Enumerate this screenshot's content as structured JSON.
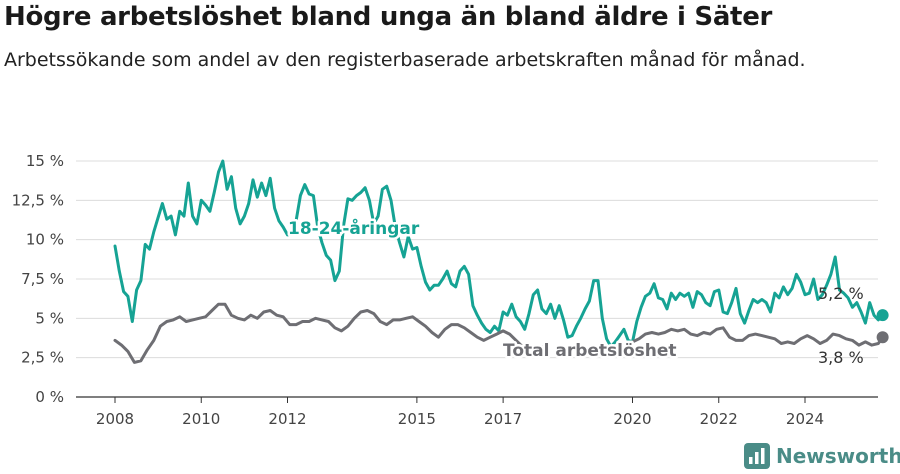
{
  "title": "Högre arbetslöshet bland unga än bland äldre i Säter",
  "subtitle": "Arbetssökande som andel av den registerbaserade arbetskraften månad för månad.",
  "brand": "Newsworthy",
  "colors": {
    "youth": "#16a394",
    "total": "#6e6e73"
  },
  "chart_data": {
    "type": "line",
    "x_unit": "year (decimal, monthly)",
    "y_unit": "%",
    "ylim": [
      0,
      15
    ],
    "xlim": [
      2007.8,
      2025.5
    ],
    "y_ticks": [
      0,
      2.5,
      5,
      7.5,
      10,
      12.5,
      15
    ],
    "y_tick_labels": [
      "0 %",
      "2,5 %",
      "5 %",
      "7,5 %",
      "10 %",
      "12,5 %",
      "15 %"
    ],
    "x_ticks": [
      2008,
      2010,
      2012,
      2015,
      2017,
      2020,
      2022,
      2024
    ],
    "x_tick_labels": [
      "2008",
      "2010",
      "2012",
      "2015",
      "2017",
      "2020",
      "2022",
      "2024"
    ],
    "grid": true,
    "series": [
      {
        "name": "18-24-åringar",
        "end_label": "5,2 %",
        "points": [
          [
            2008.0,
            9.6
          ],
          [
            2008.1,
            8.0
          ],
          [
            2008.2,
            6.7
          ],
          [
            2008.3,
            6.4
          ],
          [
            2008.4,
            4.8
          ],
          [
            2008.5,
            6.8
          ],
          [
            2008.6,
            7.4
          ],
          [
            2008.7,
            9.7
          ],
          [
            2008.8,
            9.4
          ],
          [
            2008.9,
            10.5
          ],
          [
            2009.0,
            11.4
          ],
          [
            2009.1,
            12.3
          ],
          [
            2009.2,
            11.3
          ],
          [
            2009.3,
            11.5
          ],
          [
            2009.4,
            10.3
          ],
          [
            2009.5,
            11.8
          ],
          [
            2009.6,
            11.5
          ],
          [
            2009.7,
            13.6
          ],
          [
            2009.8,
            11.5
          ],
          [
            2009.9,
            11.0
          ],
          [
            2010.0,
            12.5
          ],
          [
            2010.1,
            12.2
          ],
          [
            2010.2,
            11.8
          ],
          [
            2010.3,
            13.0
          ],
          [
            2010.4,
            14.3
          ],
          [
            2010.5,
            15.0
          ],
          [
            2010.6,
            13.2
          ],
          [
            2010.7,
            14.0
          ],
          [
            2010.8,
            12.0
          ],
          [
            2010.9,
            11.0
          ],
          [
            2011.0,
            11.5
          ],
          [
            2011.1,
            12.3
          ],
          [
            2011.2,
            13.8
          ],
          [
            2011.3,
            12.7
          ],
          [
            2011.4,
            13.6
          ],
          [
            2011.5,
            12.8
          ],
          [
            2011.6,
            13.9
          ],
          [
            2011.7,
            12.0
          ],
          [
            2011.8,
            11.2
          ],
          [
            2011.9,
            10.8
          ],
          [
            2012.0,
            10.3
          ],
          [
            2012.1,
            10.4
          ],
          [
            2012.2,
            11.2
          ],
          [
            2012.3,
            12.8
          ],
          [
            2012.4,
            13.5
          ],
          [
            2012.5,
            12.9
          ],
          [
            2012.6,
            12.8
          ],
          [
            2012.7,
            10.8
          ],
          [
            2012.8,
            9.8
          ],
          [
            2012.9,
            9.0
          ],
          [
            2013.0,
            8.7
          ],
          [
            2013.1,
            7.4
          ],
          [
            2013.2,
            8.0
          ],
          [
            2013.3,
            10.9
          ],
          [
            2013.4,
            12.6
          ],
          [
            2013.5,
            12.5
          ],
          [
            2013.6,
            12.8
          ],
          [
            2013.7,
            13.0
          ],
          [
            2013.8,
            13.3
          ],
          [
            2013.9,
            12.5
          ],
          [
            2014.0,
            11.0
          ],
          [
            2014.1,
            11.5
          ],
          [
            2014.2,
            13.2
          ],
          [
            2014.3,
            13.4
          ],
          [
            2014.4,
            12.5
          ],
          [
            2014.5,
            10.8
          ],
          [
            2014.6,
            9.8
          ],
          [
            2014.7,
            8.9
          ],
          [
            2014.8,
            10.2
          ],
          [
            2014.9,
            9.4
          ],
          [
            2015.0,
            9.5
          ],
          [
            2015.1,
            8.3
          ],
          [
            2015.2,
            7.3
          ],
          [
            2015.3,
            6.8
          ],
          [
            2015.4,
            7.1
          ],
          [
            2015.5,
            7.1
          ],
          [
            2015.6,
            7.5
          ],
          [
            2015.7,
            8.0
          ],
          [
            2015.8,
            7.2
          ],
          [
            2015.9,
            7.0
          ],
          [
            2016.0,
            8.0
          ],
          [
            2016.1,
            8.3
          ],
          [
            2016.2,
            7.8
          ],
          [
            2016.3,
            5.8
          ],
          [
            2016.4,
            5.2
          ],
          [
            2016.5,
            4.7
          ],
          [
            2016.6,
            4.3
          ],
          [
            2016.7,
            4.1
          ],
          [
            2016.8,
            4.5
          ],
          [
            2016.9,
            4.2
          ],
          [
            2017.0,
            5.4
          ],
          [
            2017.1,
            5.2
          ],
          [
            2017.2,
            5.9
          ],
          [
            2017.3,
            5.1
          ],
          [
            2017.4,
            4.8
          ],
          [
            2017.5,
            4.3
          ],
          [
            2017.6,
            5.3
          ],
          [
            2017.7,
            6.5
          ],
          [
            2017.8,
            6.8
          ],
          [
            2017.9,
            5.6
          ],
          [
            2018.0,
            5.3
          ],
          [
            2018.1,
            5.9
          ],
          [
            2018.2,
            5.0
          ],
          [
            2018.3,
            5.8
          ],
          [
            2018.4,
            4.9
          ],
          [
            2018.5,
            3.8
          ],
          [
            2018.6,
            3.9
          ],
          [
            2018.7,
            4.5
          ],
          [
            2018.8,
            5.0
          ],
          [
            2018.9,
            5.6
          ],
          [
            2019.0,
            6.1
          ],
          [
            2019.1,
            7.4
          ],
          [
            2019.2,
            7.4
          ],
          [
            2019.3,
            5.0
          ],
          [
            2019.4,
            3.7
          ],
          [
            2019.5,
            3.2
          ],
          [
            2019.6,
            3.5
          ],
          [
            2019.7,
            3.9
          ],
          [
            2019.8,
            4.3
          ],
          [
            2019.9,
            3.6
          ],
          [
            2020.0,
            3.5
          ],
          [
            2020.1,
            4.8
          ],
          [
            2020.2,
            5.7
          ],
          [
            2020.3,
            6.4
          ],
          [
            2020.4,
            6.6
          ],
          [
            2020.5,
            7.2
          ],
          [
            2020.6,
            6.3
          ],
          [
            2020.7,
            6.2
          ],
          [
            2020.8,
            5.6
          ],
          [
            2020.9,
            6.6
          ],
          [
            2021.0,
            6.2
          ],
          [
            2021.1,
            6.6
          ],
          [
            2021.2,
            6.4
          ],
          [
            2021.3,
            6.6
          ],
          [
            2021.4,
            5.7
          ],
          [
            2021.5,
            6.7
          ],
          [
            2021.6,
            6.5
          ],
          [
            2021.7,
            6.0
          ],
          [
            2021.8,
            5.8
          ],
          [
            2021.9,
            6.7
          ],
          [
            2022.0,
            6.8
          ],
          [
            2022.1,
            5.4
          ],
          [
            2022.2,
            5.3
          ],
          [
            2022.3,
            6.0
          ],
          [
            2022.4,
            6.9
          ],
          [
            2022.5,
            5.3
          ],
          [
            2022.6,
            4.7
          ],
          [
            2022.7,
            5.5
          ],
          [
            2022.8,
            6.2
          ],
          [
            2022.9,
            6.0
          ],
          [
            2023.0,
            6.2
          ],
          [
            2023.1,
            6.0
          ],
          [
            2023.2,
            5.4
          ],
          [
            2023.3,
            6.6
          ],
          [
            2023.4,
            6.3
          ],
          [
            2023.5,
            7.0
          ],
          [
            2023.6,
            6.5
          ],
          [
            2023.7,
            6.9
          ],
          [
            2023.8,
            7.8
          ],
          [
            2023.9,
            7.3
          ],
          [
            2024.0,
            6.5
          ],
          [
            2024.1,
            6.6
          ],
          [
            2024.2,
            7.5
          ],
          [
            2024.3,
            6.2
          ],
          [
            2024.4,
            6.5
          ],
          [
            2024.5,
            7.1
          ],
          [
            2024.6,
            7.8
          ],
          [
            2024.7,
            8.9
          ],
          [
            2024.8,
            6.8
          ],
          [
            2024.9,
            6.6
          ],
          [
            2025.0,
            6.3
          ],
          [
            2025.1,
            5.7
          ],
          [
            2025.2,
            6.0
          ],
          [
            2025.3,
            5.4
          ],
          [
            2025.4,
            4.7
          ],
          [
            2025.5,
            6.0
          ],
          [
            2025.6,
            5.2
          ],
          [
            2025.7,
            4.9
          ],
          [
            2025.8,
            5.2
          ]
        ]
      },
      {
        "name": "Total arbetslöshet",
        "end_label": "3,8 %",
        "points": [
          [
            2008.0,
            3.6
          ],
          [
            2008.15,
            3.3
          ],
          [
            2008.3,
            2.9
          ],
          [
            2008.45,
            2.2
          ],
          [
            2008.6,
            2.3
          ],
          [
            2008.75,
            3.0
          ],
          [
            2008.9,
            3.6
          ],
          [
            2009.05,
            4.5
          ],
          [
            2009.2,
            4.8
          ],
          [
            2009.35,
            4.9
          ],
          [
            2009.5,
            5.1
          ],
          [
            2009.65,
            4.8
          ],
          [
            2009.8,
            4.9
          ],
          [
            2009.95,
            5.0
          ],
          [
            2010.1,
            5.1
          ],
          [
            2010.25,
            5.5
          ],
          [
            2010.4,
            5.9
          ],
          [
            2010.55,
            5.9
          ],
          [
            2010.7,
            5.2
          ],
          [
            2010.85,
            5.0
          ],
          [
            2011.0,
            4.9
          ],
          [
            2011.15,
            5.2
          ],
          [
            2011.3,
            5.0
          ],
          [
            2011.45,
            5.4
          ],
          [
            2011.6,
            5.5
          ],
          [
            2011.75,
            5.2
          ],
          [
            2011.9,
            5.1
          ],
          [
            2012.05,
            4.6
          ],
          [
            2012.2,
            4.6
          ],
          [
            2012.35,
            4.8
          ],
          [
            2012.5,
            4.8
          ],
          [
            2012.65,
            5.0
          ],
          [
            2012.8,
            4.9
          ],
          [
            2012.95,
            4.8
          ],
          [
            2013.1,
            4.4
          ],
          [
            2013.25,
            4.2
          ],
          [
            2013.4,
            4.5
          ],
          [
            2013.55,
            5.0
          ],
          [
            2013.7,
            5.4
          ],
          [
            2013.85,
            5.5
          ],
          [
            2014.0,
            5.3
          ],
          [
            2014.15,
            4.8
          ],
          [
            2014.3,
            4.6
          ],
          [
            2014.45,
            4.9
          ],
          [
            2014.6,
            4.9
          ],
          [
            2014.75,
            5.0
          ],
          [
            2014.9,
            5.1
          ],
          [
            2015.05,
            4.8
          ],
          [
            2015.2,
            4.5
          ],
          [
            2015.35,
            4.1
          ],
          [
            2015.5,
            3.8
          ],
          [
            2015.65,
            4.3
          ],
          [
            2015.8,
            4.6
          ],
          [
            2015.95,
            4.6
          ],
          [
            2016.1,
            4.4
          ],
          [
            2016.25,
            4.1
          ],
          [
            2016.4,
            3.8
          ],
          [
            2016.55,
            3.6
          ],
          [
            2016.7,
            3.8
          ],
          [
            2016.85,
            4.0
          ],
          [
            2017.0,
            4.2
          ],
          [
            2017.15,
            4.0
          ],
          [
            2017.3,
            3.6
          ],
          [
            2017.45,
            3.2
          ],
          [
            2017.6,
            3.1
          ],
          [
            2017.75,
            3.1
          ],
          [
            2017.9,
            3.2
          ]
        ]
      },
      {
        "name": "",
        "points": [
          [
            2018.7,
            3.0
          ],
          [
            2018.85,
            2.6
          ],
          [
            2019.0,
            2.8
          ]
        ]
      },
      {
        "name": "",
        "points": [
          [
            2020.0,
            3.5
          ],
          [
            2020.15,
            3.7
          ],
          [
            2020.3,
            4.0
          ],
          [
            2020.45,
            4.1
          ],
          [
            2020.6,
            4.0
          ],
          [
            2020.75,
            4.1
          ],
          [
            2020.9,
            4.3
          ],
          [
            2021.05,
            4.2
          ],
          [
            2021.2,
            4.3
          ],
          [
            2021.35,
            4.0
          ],
          [
            2021.5,
            3.9
          ],
          [
            2021.65,
            4.1
          ],
          [
            2021.8,
            4.0
          ],
          [
            2021.95,
            4.3
          ],
          [
            2022.1,
            4.4
          ],
          [
            2022.25,
            3.8
          ],
          [
            2022.4,
            3.6
          ],
          [
            2022.55,
            3.6
          ],
          [
            2022.7,
            3.9
          ],
          [
            2022.85,
            4.0
          ],
          [
            2023.0,
            3.9
          ],
          [
            2023.15,
            3.8
          ],
          [
            2023.3,
            3.7
          ],
          [
            2023.45,
            3.4
          ],
          [
            2023.6,
            3.5
          ],
          [
            2023.75,
            3.4
          ],
          [
            2023.9,
            3.7
          ],
          [
            2024.05,
            3.9
          ],
          [
            2024.2,
            3.7
          ],
          [
            2024.35,
            3.4
          ],
          [
            2024.5,
            3.6
          ],
          [
            2024.65,
            4.0
          ],
          [
            2024.8,
            3.9
          ],
          [
            2024.95,
            3.7
          ],
          [
            2025.1,
            3.6
          ],
          [
            2025.25,
            3.3
          ],
          [
            2025.4,
            3.5
          ],
          [
            2025.55,
            3.3
          ],
          [
            2025.7,
            3.4
          ],
          [
            2025.8,
            3.8
          ]
        ]
      }
    ]
  }
}
